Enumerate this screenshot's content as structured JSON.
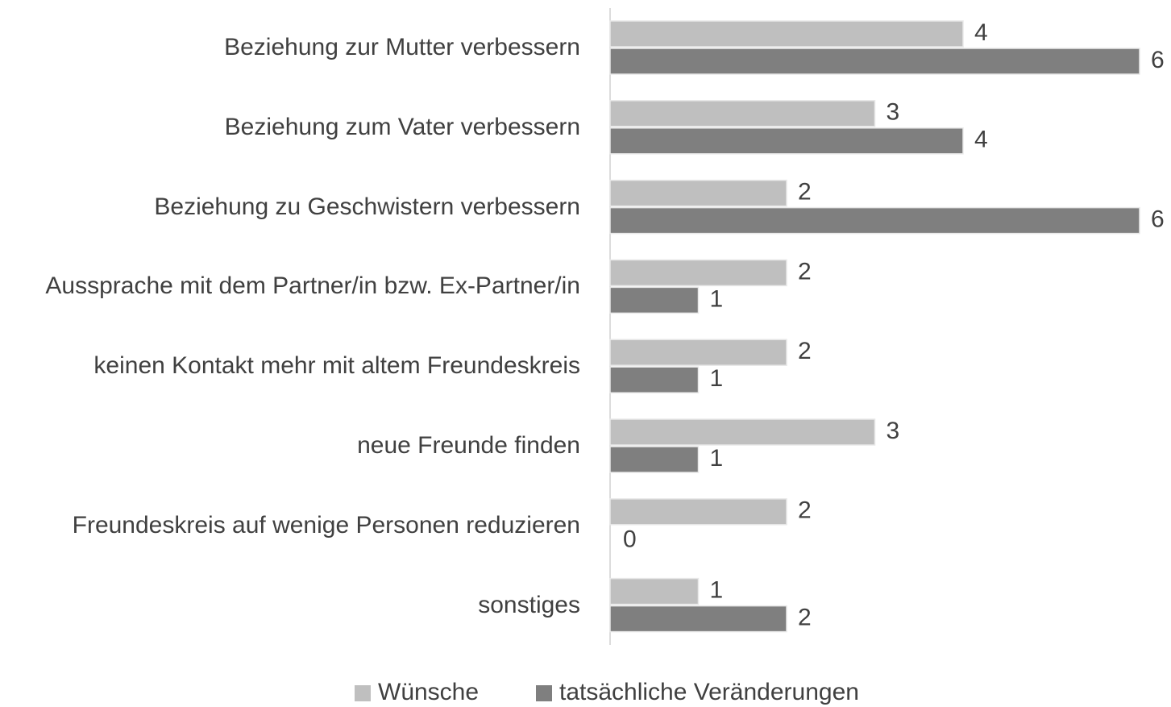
{
  "chart_data": {
    "type": "bar",
    "orientation": "horizontal",
    "categories": [
      "Beziehung zur Mutter verbessern",
      "Beziehung zum Vater verbessern",
      "Beziehung zu Geschwistern verbessern",
      "Aussprache mit dem Partner/in bzw. Ex-Partner/in",
      "keinen Kontakt mehr mit altem Freundeskreis",
      "neue Freunde finden",
      "Freundeskreis auf wenige Personen reduzieren",
      "sonstiges"
    ],
    "series": [
      {
        "name": "Wünsche",
        "color": "#bfbfbf",
        "values": [
          4,
          3,
          2,
          2,
          2,
          3,
          2,
          1
        ]
      },
      {
        "name": "tatsächliche Veränderungen",
        "color": "#7f7f7f",
        "values": [
          6,
          4,
          6,
          1,
          1,
          1,
          0,
          2
        ]
      }
    ],
    "xlim": [
      0,
      6
    ],
    "legend": "bottom"
  }
}
